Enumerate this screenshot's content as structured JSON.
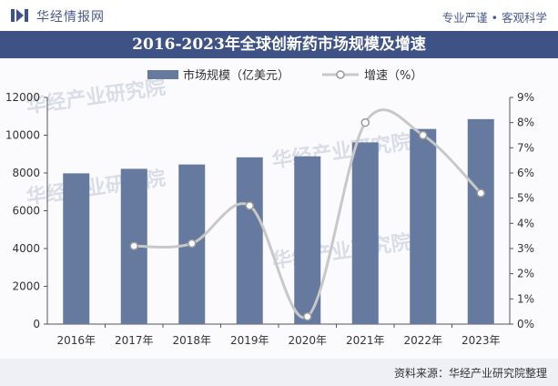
{
  "header": {
    "brand": "华经情报网",
    "slogan": "专业严谨 • 客观科学",
    "logo_color": "#3f5285"
  },
  "title_bar": {
    "color": "#3f5285"
  },
  "footer": {
    "source": "资料来源：华经产业研究院整理"
  },
  "watermarks": [
    "华经产业研究院",
    "华经产业研究院",
    "华经产业研究院",
    "华经产业研究院"
  ],
  "chart_data": {
    "type": "bar",
    "title": "2016-2023年全球创新药市场规模及增速",
    "categories": [
      "2016年",
      "2017年",
      "2018年",
      "2019年",
      "2020年",
      "2021年",
      "2022年",
      "2023年"
    ],
    "series": [
      {
        "name": "市场规模（亿美元）",
        "type": "bar",
        "axis": "left",
        "color": "#66799f",
        "values": [
          7980,
          8220,
          8450,
          8830,
          8880,
          9620,
          10330,
          10850
        ]
      },
      {
        "name": "增速（%）",
        "type": "line",
        "axis": "right",
        "color": "#c8c8c8",
        "values": [
          null,
          3.1,
          3.2,
          4.7,
          0.3,
          8.0,
          7.5,
          5.2
        ]
      }
    ],
    "y_left": {
      "min": 0,
      "max": 12000,
      "ticks": [
        "0",
        "2000",
        "4000",
        "6000",
        "8000",
        "10000",
        "12000"
      ]
    },
    "y_right": {
      "min": 0,
      "max": 9,
      "ticks": [
        "0%",
        "1%",
        "2%",
        "3%",
        "4%",
        "5%",
        "6%",
        "7%",
        "8%",
        "9%"
      ]
    },
    "legend_position": "top",
    "grid": false
  }
}
